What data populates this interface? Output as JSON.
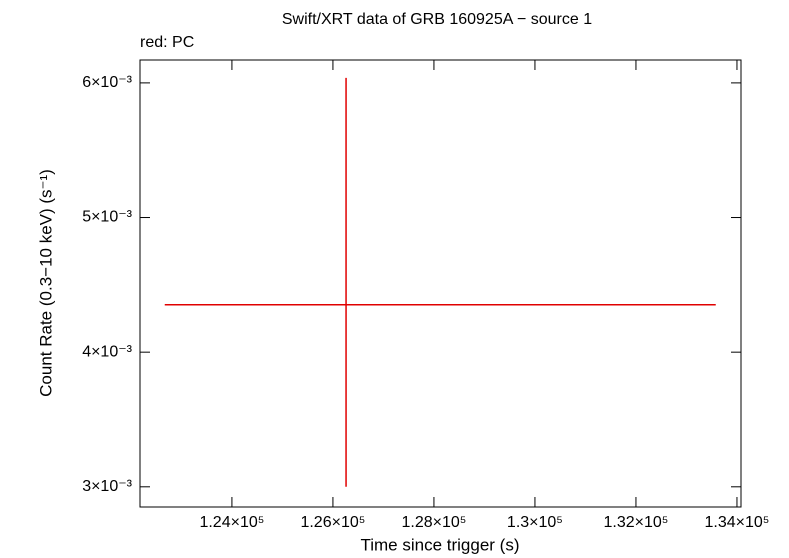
{
  "chart_data": {
    "type": "errorbar",
    "title": "Swift/XRT data of GRB 160925A − source 1",
    "legend_text": "red: PC",
    "x_label": "Time since trigger (s)",
    "y_label": "Count Rate (0.3−10 keV) (s⁻¹)",
    "series": [
      {
        "name": "PC",
        "color": "#e00000",
        "x": [
          126260
        ],
        "xerr_minus": [
          3590
        ],
        "xerr_plus": [
          7320
        ],
        "values": [
          0.004352
        ],
        "yerr_minus": [
          0.001352
        ],
        "yerr_plus": [
          0.001685
        ]
      }
    ],
    "xlim": [
      122180,
      134080
    ],
    "xticks": [
      {
        "value": 124000,
        "label": "1.24×10⁵"
      },
      {
        "value": 126000,
        "label": "1.26×10⁵"
      },
      {
        "value": 128000,
        "label": "1.28×10⁵"
      },
      {
        "value": 130000,
        "label": "1.3×10⁵"
      },
      {
        "value": 132000,
        "label": "1.32×10⁵"
      },
      {
        "value": 134000,
        "label": "1.34×10⁵"
      }
    ],
    "ylim": [
      0.00285,
      0.00617
    ],
    "yticks": [
      {
        "value": 0.003,
        "label": "3×10⁻³"
      },
      {
        "value": 0.004,
        "label": "4×10⁻³"
      },
      {
        "value": 0.005,
        "label": "5×10⁻³"
      },
      {
        "value": 0.006,
        "label": "6×10⁻³"
      }
    ],
    "grid": false
  }
}
